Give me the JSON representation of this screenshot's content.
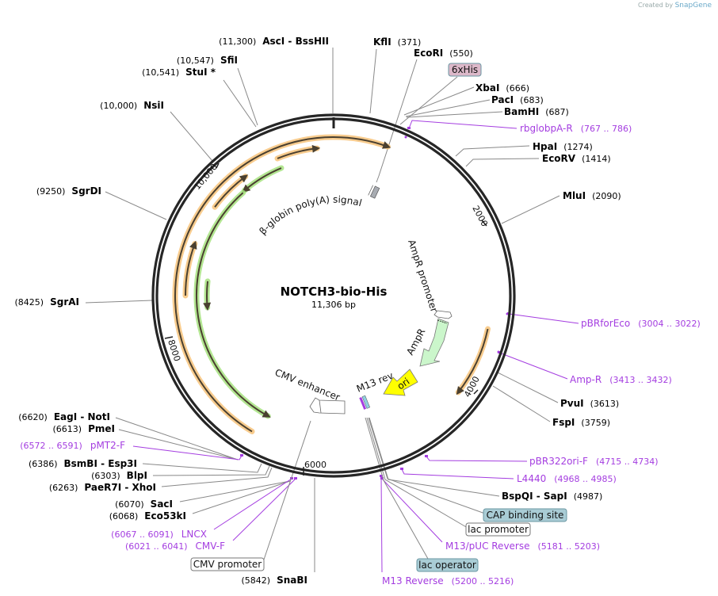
{
  "credit": {
    "prefix": "Created by",
    "brand": "SnapGene"
  },
  "plasmid": {
    "name": "NOTCH3-bio-His",
    "length": "11,306 bp"
  },
  "ticks": [
    "2000",
    "4000",
    "6000",
    "8000",
    "10,000"
  ],
  "enzymes": [
    {
      "name": "AscI  - BssHII",
      "pos": "(11,300)"
    },
    {
      "name": "SfiI",
      "pos": "(10,547)"
    },
    {
      "name": "StuI *",
      "pos": "(10,541)"
    },
    {
      "name": "NsiI",
      "pos": "(10,000)"
    },
    {
      "name": "KflI",
      "pos": "(371)"
    },
    {
      "name": "EcoRI",
      "pos": "(550)"
    },
    {
      "name": "XbaI",
      "pos": "(666)"
    },
    {
      "name": "PacI",
      "pos": "(683)"
    },
    {
      "name": "BamHI",
      "pos": "(687)"
    },
    {
      "name": "HpaI",
      "pos": "(1274)"
    },
    {
      "name": "EcoRV",
      "pos": "(1414)"
    },
    {
      "name": "MluI",
      "pos": "(2090)"
    },
    {
      "name": "SgrDI",
      "pos": "(9250)"
    },
    {
      "name": "SgrAI",
      "pos": "(8425)"
    },
    {
      "name": "PvuI",
      "pos": "(3613)"
    },
    {
      "name": "FspI",
      "pos": "(3759)"
    },
    {
      "name": "EagI  - NotI",
      "pos": "(6620)"
    },
    {
      "name": "PmeI",
      "pos": "(6613)"
    },
    {
      "name": "BsmBI  - Esp3I",
      "pos": "(6386)"
    },
    {
      "name": "BlpI",
      "pos": "(6303)"
    },
    {
      "name": "PaeR7I  - XhoI",
      "pos": "(6263)"
    },
    {
      "name": "SacI",
      "pos": "(6070)"
    },
    {
      "name": "Eco53kI",
      "pos": "(6068)"
    },
    {
      "name": "SnaBI",
      "pos": "(5842)"
    },
    {
      "name": "BspQI  - SapI",
      "pos": "(4987)"
    }
  ],
  "primers": [
    {
      "name": "rbglobpA-R",
      "range": "(767 .. 786)"
    },
    {
      "name": "pBRforEco",
      "range": "(3004 .. 3022)"
    },
    {
      "name": "Amp-R",
      "range": "(3413 .. 3432)"
    },
    {
      "name": "pBR322ori-F",
      "range": "(4715 .. 4734)"
    },
    {
      "name": "L4440",
      "range": "(4968 .. 4985)"
    },
    {
      "name": "M13/pUC Reverse",
      "range": "(5181 .. 5203)"
    },
    {
      "name": "M13 Reverse",
      "range": "(5200 .. 5216)"
    },
    {
      "name": "pMT2-F",
      "range": "(6572 .. 6591)"
    },
    {
      "name": "LNCX",
      "range": "(6067 .. 6091)"
    },
    {
      "name": "CMV-F",
      "range": "(6021 .. 6041)"
    }
  ],
  "boxed_features": [
    {
      "name": "6xHis",
      "color": "#dcb8c9"
    },
    {
      "name": "CAP binding site",
      "color": "#a9ccd5"
    },
    {
      "name": "lac promoter",
      "color": "#ffffff"
    },
    {
      "name": "lac operator",
      "color": "#a9ccd5"
    },
    {
      "name": "CMV promoter",
      "color": "#ffffff"
    }
  ],
  "inner_features": {
    "polya": "β-globin poly(A) signal",
    "ampr_promoter": "AmpR promoter",
    "ampr": "AmpR",
    "ori": "ori",
    "m13rev": "M13 rev",
    "cmv_enhancer": "CMV enhancer"
  },
  "colors": {
    "orf": "#f7c37a",
    "orf_rev": "#a6e27f",
    "ampr": "#c9f5c9",
    "ori": "#ffff00",
    "primer": "#a43de0"
  }
}
